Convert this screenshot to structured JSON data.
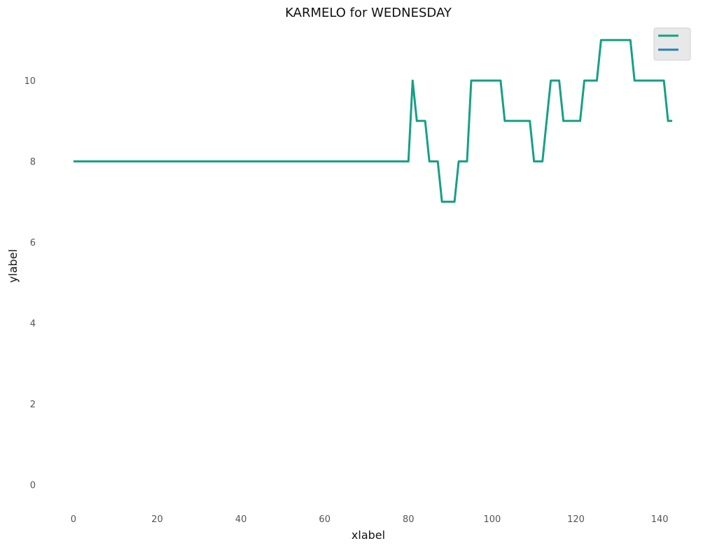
{
  "chart_data": {
    "type": "line",
    "title": "KARMELO for WEDNESDAY",
    "xlabel": "xlabel",
    "ylabel": "ylabel",
    "xlim": [
      -5,
      146
    ],
    "ylim": [
      -0.7,
      11.3
    ],
    "x_ticks": [
      0,
      20,
      40,
      60,
      80,
      100,
      120,
      140
    ],
    "y_ticks": [
      0,
      2,
      4,
      6,
      8,
      10
    ],
    "grid": false,
    "legend_placement": "top-right",
    "series": [
      {
        "color": "#16a085",
        "points": [
          [
            0,
            8
          ],
          [
            80,
            8
          ],
          [
            81,
            10
          ],
          [
            82,
            9
          ],
          [
            84,
            9
          ],
          [
            85,
            8
          ],
          [
            87,
            8
          ],
          [
            88,
            7
          ],
          [
            91,
            7
          ],
          [
            92,
            8
          ],
          [
            94,
            8
          ],
          [
            95,
            10
          ],
          [
            102,
            10
          ],
          [
            103,
            9
          ],
          [
            109,
            9
          ],
          [
            110,
            8
          ],
          [
            112,
            8
          ],
          [
            114,
            10
          ],
          [
            116,
            10
          ],
          [
            117,
            9
          ],
          [
            121,
            9
          ],
          [
            122,
            10
          ],
          [
            125,
            10
          ],
          [
            126,
            11
          ],
          [
            133,
            11
          ],
          [
            134,
            10
          ],
          [
            141,
            10
          ],
          [
            142,
            9
          ],
          [
            143,
            9
          ]
        ]
      },
      {
        "color": "#2980b9",
        "points": []
      }
    ]
  }
}
